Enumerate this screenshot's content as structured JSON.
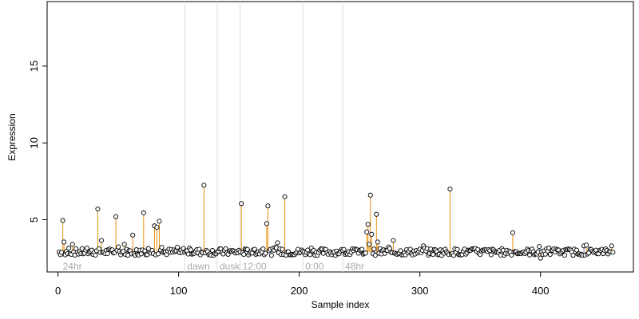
{
  "chart_data": {
    "type": "scatter",
    "xlabel": "Sample index",
    "ylabel": "Expression",
    "xlim": [
      -9,
      477
    ],
    "ylim": [
      1.6,
      19.2
    ],
    "x_ticks": [
      0,
      100,
      200,
      300,
      400
    ],
    "y_ticks": [
      5,
      10,
      15
    ],
    "grid": false,
    "colors": {
      "baseline": "#5b7fb4",
      "stem": "#e8900f",
      "vline": "#dddddd",
      "marker_edge": "#000000",
      "marker_fill": "#ffffff",
      "phase_text": "#aaaaaa"
    },
    "baseline": 2.9,
    "phase_markers": [
      {
        "x": 2,
        "label": "24hr",
        "line": false
      },
      {
        "x": 105,
        "label": "dawn",
        "line": true
      },
      {
        "x": 132,
        "label": "dusk",
        "line": true
      },
      {
        "x": 151,
        "label": "12:00",
        "line": true
      },
      {
        "x": 203,
        "label": "0:00",
        "line": true
      },
      {
        "x": 236,
        "label": "48hr",
        "line": true
      }
    ],
    "peaks": [
      {
        "x": 4,
        "y": 4.95
      },
      {
        "x": 5,
        "y": 3.55
      },
      {
        "x": 12,
        "y": 3.4
      },
      {
        "x": 33,
        "y": 5.7
      },
      {
        "x": 36,
        "y": 3.65
      },
      {
        "x": 48,
        "y": 5.2
      },
      {
        "x": 55,
        "y": 3.4
      },
      {
        "x": 62,
        "y": 4.0
      },
      {
        "x": 71,
        "y": 5.45
      },
      {
        "x": 80,
        "y": 4.6
      },
      {
        "x": 82,
        "y": 4.5
      },
      {
        "x": 84,
        "y": 4.9
      },
      {
        "x": 86,
        "y": 3.2
      },
      {
        "x": 121,
        "y": 7.25
      },
      {
        "x": 152,
        "y": 6.05
      },
      {
        "x": 173,
        "y": 4.75
      },
      {
        "x": 174,
        "y": 5.9
      },
      {
        "x": 182,
        "y": 3.5
      },
      {
        "x": 188,
        "y": 6.5
      },
      {
        "x": 256,
        "y": 4.2
      },
      {
        "x": 257,
        "y": 4.7
      },
      {
        "x": 258,
        "y": 3.4
      },
      {
        "x": 259,
        "y": 6.6
      },
      {
        "x": 260,
        "y": 4.05
      },
      {
        "x": 264,
        "y": 5.35
      },
      {
        "x": 265,
        "y": 3.55
      },
      {
        "x": 278,
        "y": 3.65
      },
      {
        "x": 303,
        "y": 3.3
      },
      {
        "x": 325,
        "y": 7.0
      },
      {
        "x": 377,
        "y": 4.15
      },
      {
        "x": 400,
        "y": 2.5
      },
      {
        "x": 438,
        "y": 3.35
      },
      {
        "x": 459,
        "y": 3.3
      }
    ]
  }
}
